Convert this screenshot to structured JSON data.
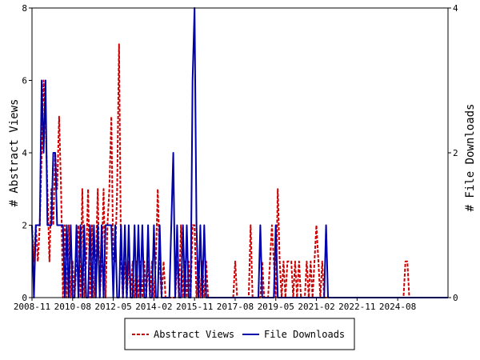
{
  "chart_data": {
    "type": "line",
    "title": "",
    "ylabel_left": "# Abstract Views",
    "ylabel_right": "# File Downloads",
    "y_left_range": [
      0,
      8
    ],
    "y_right_range": [
      0,
      4
    ],
    "y_left_ticks": [
      0,
      2,
      4,
      6,
      8
    ],
    "y_right_ticks": [
      0,
      2,
      4
    ],
    "x_range": [
      "2008-11",
      "2026-10"
    ],
    "x_ticks": [
      "2008-11",
      "2010-08",
      "2012-05",
      "2014-02",
      "2015-11",
      "2017-08",
      "2019-05",
      "2021-02",
      "2022-11",
      "2024-08"
    ],
    "legend_position": "bottom",
    "colors": {
      "abstract_views": "#cc0000",
      "file_downloads": "#0000aa"
    },
    "series": [
      {
        "name": "Abstract Views",
        "axis": "left",
        "style": "dashed",
        "points": [
          [
            "2008-11",
            2
          ],
          [
            "2008-12",
            1
          ],
          [
            "2009-01",
            2
          ],
          [
            "2009-02",
            1
          ],
          [
            "2009-03",
            2
          ],
          [
            "2009-04",
            4
          ],
          [
            "2009-05",
            6
          ],
          [
            "2009-06",
            5
          ],
          [
            "2009-07",
            3
          ],
          [
            "2009-08",
            1
          ],
          [
            "2009-09",
            3
          ],
          [
            "2009-10",
            2
          ],
          [
            "2009-11",
            4
          ],
          [
            "2009-12",
            3
          ],
          [
            "2010-01",
            5
          ],
          [
            "2010-02",
            3
          ],
          [
            "2010-03",
            0
          ],
          [
            "2010-04",
            2
          ],
          [
            "2010-05",
            0
          ],
          [
            "2010-06",
            2
          ],
          [
            "2010-07",
            0
          ],
          [
            "2010-08",
            1
          ],
          [
            "2010-09",
            0
          ],
          [
            "2010-10",
            1
          ],
          [
            "2010-11",
            2
          ],
          [
            "2010-12",
            0
          ],
          [
            "2011-01",
            3
          ],
          [
            "2011-02",
            0
          ],
          [
            "2011-03",
            1
          ],
          [
            "2011-04",
            3
          ],
          [
            "2011-05",
            0
          ],
          [
            "2011-06",
            2
          ],
          [
            "2011-07",
            0
          ],
          [
            "2011-08",
            1
          ],
          [
            "2011-09",
            3
          ],
          [
            "2011-10",
            0
          ],
          [
            "2011-11",
            1
          ],
          [
            "2011-12",
            3
          ],
          [
            "2012-01",
            0
          ],
          [
            "2012-02",
            2
          ],
          [
            "2012-03",
            3
          ],
          [
            "2012-04",
            5
          ],
          [
            "2012-05",
            1
          ],
          [
            "2012-06",
            1
          ],
          [
            "2012-07",
            3
          ],
          [
            "2012-08",
            7
          ],
          [
            "2012-09",
            1
          ],
          [
            "2012-10",
            0
          ],
          [
            "2012-11",
            1
          ],
          [
            "2012-12",
            0
          ],
          [
            "2013-01",
            1
          ],
          [
            "2013-02",
            0
          ],
          [
            "2013-03",
            1
          ],
          [
            "2013-04",
            0
          ],
          [
            "2013-05",
            1
          ],
          [
            "2013-06",
            0
          ],
          [
            "2013-07",
            1
          ],
          [
            "2013-08",
            0
          ],
          [
            "2013-09",
            1
          ],
          [
            "2013-10",
            0
          ],
          [
            "2013-11",
            1
          ],
          [
            "2013-12",
            0
          ],
          [
            "2014-01",
            1
          ],
          [
            "2014-02",
            0
          ],
          [
            "2014-03",
            1
          ],
          [
            "2014-04",
            3
          ],
          [
            "2014-05",
            1
          ],
          [
            "2014-06",
            0
          ],
          [
            "2014-07",
            1
          ],
          [
            "2014-08",
            0
          ],
          [
            "2014-09",
            0
          ],
          [
            "2014-10",
            0
          ],
          [
            "2014-11",
            0
          ],
          [
            "2014-12",
            0
          ],
          [
            "2015-01",
            0
          ],
          [
            "2015-02",
            1
          ],
          [
            "2015-03",
            0
          ],
          [
            "2015-04",
            2
          ],
          [
            "2015-05",
            0
          ],
          [
            "2015-06",
            1
          ],
          [
            "2015-07",
            0
          ],
          [
            "2015-08",
            1
          ],
          [
            "2015-09",
            0
          ],
          [
            "2015-10",
            2
          ],
          [
            "2015-11",
            2
          ],
          [
            "2015-12",
            0
          ],
          [
            "2016-01",
            1
          ],
          [
            "2016-02",
            0
          ],
          [
            "2016-03",
            1
          ],
          [
            "2016-04",
            0
          ],
          [
            "2016-05",
            1
          ],
          [
            "2016-06",
            0
          ],
          [
            "2016-07",
            0
          ],
          [
            "2017-07",
            0
          ],
          [
            "2017-08",
            1
          ],
          [
            "2017-09",
            0
          ],
          [
            "2018-03",
            0
          ],
          [
            "2018-04",
            2
          ],
          [
            "2018-05",
            0
          ],
          [
            "2018-09",
            0
          ],
          [
            "2018-10",
            1
          ],
          [
            "2018-11",
            0
          ],
          [
            "2019-01",
            0
          ],
          [
            "2019-02",
            1
          ],
          [
            "2019-03",
            2
          ],
          [
            "2019-04",
            1
          ],
          [
            "2019-05",
            0
          ],
          [
            "2019-06",
            3
          ],
          [
            "2019-07",
            1
          ],
          [
            "2019-08",
            0
          ],
          [
            "2019-09",
            1
          ],
          [
            "2019-10",
            0
          ],
          [
            "2019-11",
            1
          ],
          [
            "2019-12",
            1
          ],
          [
            "2020-01",
            1
          ],
          [
            "2020-02",
            0
          ],
          [
            "2020-03",
            1
          ],
          [
            "2020-04",
            0
          ],
          [
            "2020-05",
            1
          ],
          [
            "2020-06",
            0
          ],
          [
            "2020-08",
            0
          ],
          [
            "2020-09",
            1
          ],
          [
            "2020-10",
            0
          ],
          [
            "2020-11",
            1
          ],
          [
            "2020-12",
            0
          ],
          [
            "2021-01",
            1
          ],
          [
            "2021-02",
            2
          ],
          [
            "2021-03",
            1
          ],
          [
            "2021-04",
            0
          ],
          [
            "2021-05",
            1
          ],
          [
            "2021-06",
            0
          ],
          [
            "2021-07",
            0
          ],
          [
            "2024-11",
            0
          ],
          [
            "2024-12",
            1
          ],
          [
            "2025-01",
            1
          ],
          [
            "2025-02",
            0
          ],
          [
            "2026-10",
            0
          ]
        ]
      },
      {
        "name": "File Downloads",
        "axis": "right",
        "style": "solid",
        "points": [
          [
            "2008-11",
            1
          ],
          [
            "2008-12",
            0
          ],
          [
            "2009-01",
            1
          ],
          [
            "2009-02",
            1
          ],
          [
            "2009-03",
            1
          ],
          [
            "2009-04",
            3
          ],
          [
            "2009-05",
            2
          ],
          [
            "2009-06",
            3
          ],
          [
            "2009-07",
            1
          ],
          [
            "2009-08",
            1
          ],
          [
            "2009-09",
            1
          ],
          [
            "2009-10",
            2
          ],
          [
            "2009-11",
            2
          ],
          [
            "2009-12",
            1
          ],
          [
            "2010-01",
            1
          ],
          [
            "2010-02",
            1
          ],
          [
            "2010-03",
            1
          ],
          [
            "2010-04",
            0
          ],
          [
            "2010-05",
            1
          ],
          [
            "2010-06",
            0
          ],
          [
            "2010-07",
            1
          ],
          [
            "2010-08",
            0
          ],
          [
            "2010-09",
            0
          ],
          [
            "2010-10",
            1
          ],
          [
            "2010-11",
            0
          ],
          [
            "2010-12",
            1
          ],
          [
            "2011-01",
            0
          ],
          [
            "2011-02",
            1
          ],
          [
            "2011-03",
            0
          ],
          [
            "2011-04",
            0
          ],
          [
            "2011-05",
            1
          ],
          [
            "2011-06",
            0
          ],
          [
            "2011-07",
            1
          ],
          [
            "2011-08",
            0
          ],
          [
            "2011-09",
            1
          ],
          [
            "2011-10",
            0
          ],
          [
            "2011-11",
            1
          ],
          [
            "2011-12",
            0
          ],
          [
            "2012-01",
            1
          ],
          [
            "2012-02",
            1
          ],
          [
            "2012-03",
            1
          ],
          [
            "2012-04",
            1
          ],
          [
            "2012-05",
            0
          ],
          [
            "2012-06",
            1
          ],
          [
            "2012-07",
            0
          ],
          [
            "2012-08",
            0
          ],
          [
            "2012-09",
            1
          ],
          [
            "2012-10",
            0
          ],
          [
            "2012-11",
            1
          ],
          [
            "2012-12",
            0
          ],
          [
            "2013-01",
            1
          ],
          [
            "2013-02",
            0
          ],
          [
            "2013-03",
            0
          ],
          [
            "2013-04",
            1
          ],
          [
            "2013-05",
            0
          ],
          [
            "2013-06",
            1
          ],
          [
            "2013-07",
            0
          ],
          [
            "2013-08",
            1
          ],
          [
            "2013-09",
            0
          ],
          [
            "2013-10",
            0
          ],
          [
            "2013-11",
            1
          ],
          [
            "2013-12",
            0
          ],
          [
            "2014-01",
            0
          ],
          [
            "2014-02",
            1
          ],
          [
            "2014-03",
            0
          ],
          [
            "2014-04",
            0
          ],
          [
            "2014-05",
            1
          ],
          [
            "2014-06",
            0
          ],
          [
            "2014-07",
            0
          ],
          [
            "2014-08",
            0
          ],
          [
            "2014-09",
            0
          ],
          [
            "2014-10",
            0
          ],
          [
            "2014-11",
            1
          ],
          [
            "2014-12",
            2
          ],
          [
            "2015-01",
            0
          ],
          [
            "2015-02",
            1
          ],
          [
            "2015-03",
            0
          ],
          [
            "2015-04",
            0
          ],
          [
            "2015-05",
            1
          ],
          [
            "2015-06",
            0
          ],
          [
            "2015-07",
            1
          ],
          [
            "2015-08",
            0
          ],
          [
            "2015-09",
            0
          ],
          [
            "2015-10",
            3
          ],
          [
            "2015-11",
            4
          ],
          [
            "2015-12",
            1
          ],
          [
            "2016-01",
            0
          ],
          [
            "2016-02",
            1
          ],
          [
            "2016-03",
            0
          ],
          [
            "2016-04",
            1
          ],
          [
            "2016-05",
            0
          ],
          [
            "2016-06",
            0
          ],
          [
            "2018-08",
            0
          ],
          [
            "2018-09",
            1
          ],
          [
            "2018-10",
            0
          ],
          [
            "2019-04",
            0
          ],
          [
            "2019-05",
            1
          ],
          [
            "2019-06",
            0
          ],
          [
            "2021-06",
            0
          ],
          [
            "2021-07",
            1
          ],
          [
            "2021-08",
            0
          ],
          [
            "2026-10",
            0
          ]
        ]
      }
    ]
  }
}
